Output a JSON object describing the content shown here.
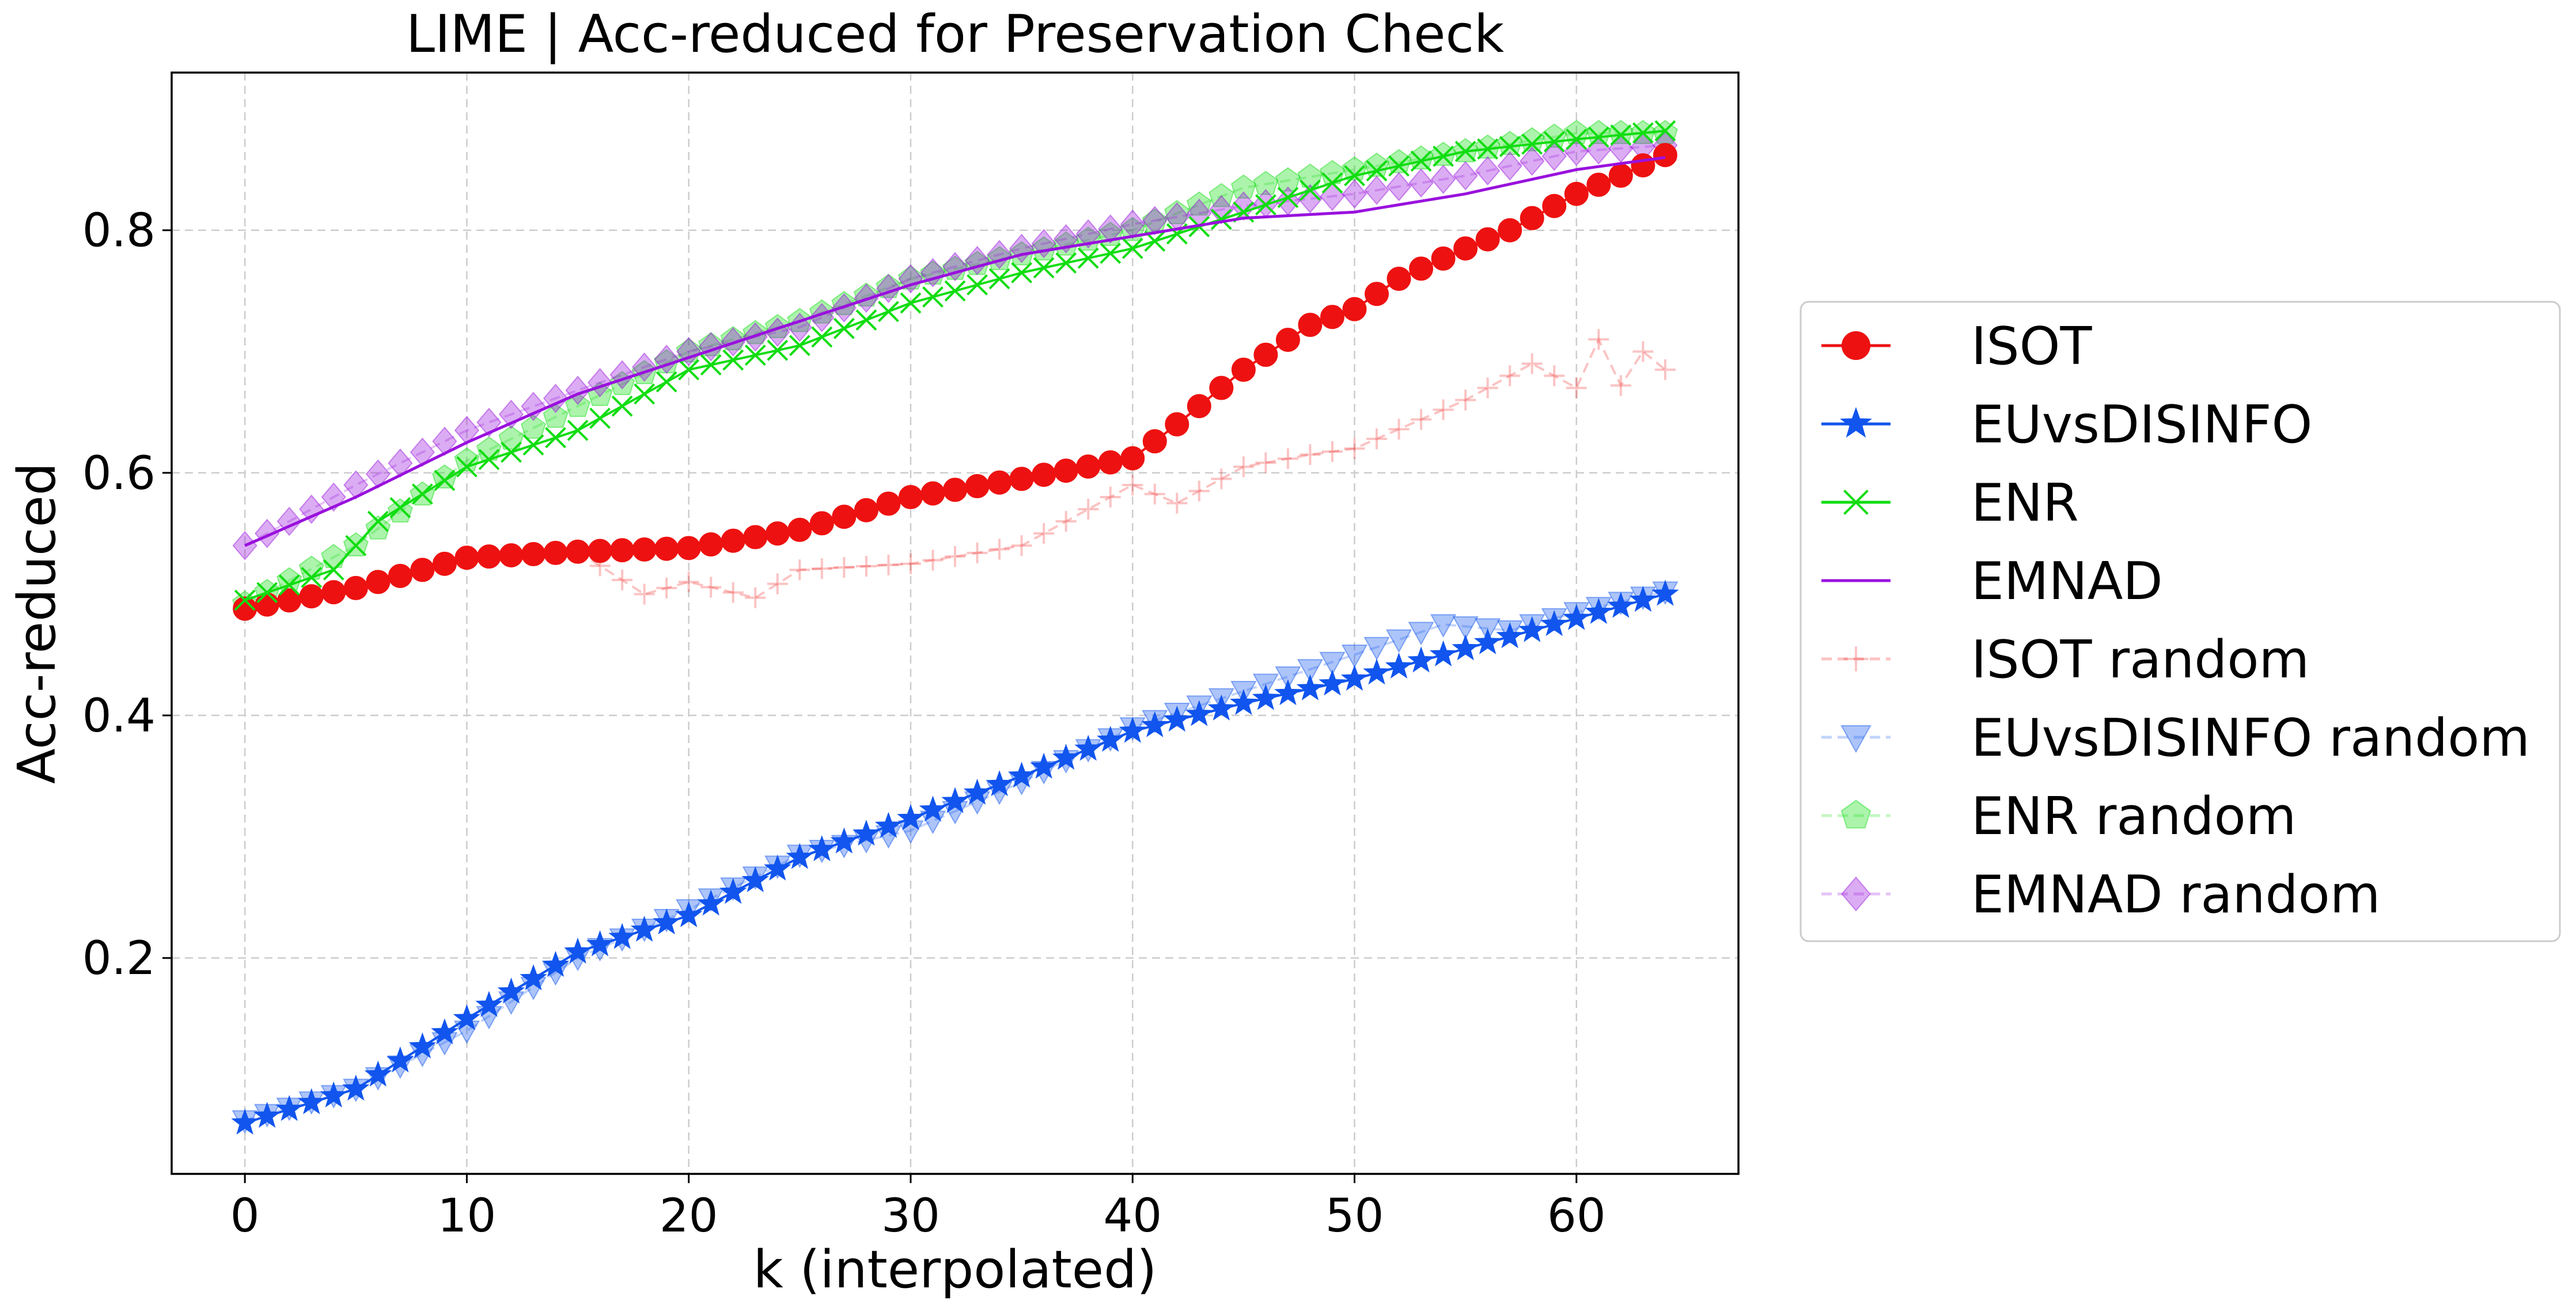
{
  "chart_data": {
    "type": "line",
    "title": "LIME | Acc-reduced for Preservation Check",
    "xlabel": "k (interpolated)",
    "ylabel": "Acc-reduced",
    "xlim": [
      -3.3,
      67.3
    ],
    "ylim": [
      0.022,
      0.93
    ],
    "xticks": [
      0,
      10,
      20,
      30,
      40,
      50,
      60
    ],
    "xtick_labels": [
      "0",
      "10",
      "20",
      "30",
      "40",
      "50",
      "60"
    ],
    "yticks": [
      0.2,
      0.4,
      0.6,
      0.8
    ],
    "ytick_labels": [
      "0.2",
      "0.4",
      "0.6",
      "0.8"
    ],
    "grid": true,
    "legend_position": "right, outside plot",
    "series": [
      {
        "name": "ISOT",
        "color": "#ee1111",
        "marker": "circle",
        "line": "solid",
        "alpha": 1,
        "anchors": [
          [
            0,
            0.488
          ],
          [
            5,
            0.505
          ],
          [
            10,
            0.53
          ],
          [
            15,
            0.535
          ],
          [
            20,
            0.538
          ],
          [
            25,
            0.553
          ],
          [
            30,
            0.58
          ],
          [
            35,
            0.595
          ],
          [
            40,
            0.612
          ],
          [
            42,
            0.64
          ],
          [
            45,
            0.685
          ],
          [
            48,
            0.722
          ],
          [
            50,
            0.735
          ],
          [
            52,
            0.76
          ],
          [
            55,
            0.785
          ],
          [
            57,
            0.8
          ],
          [
            60,
            0.83
          ],
          [
            62,
            0.845
          ],
          [
            64,
            0.862
          ]
        ]
      },
      {
        "name": "EUvsDISINFO",
        "color": "#1155ee",
        "marker": "star",
        "line": "solid",
        "alpha": 1,
        "anchors": [
          [
            0,
            0.064
          ],
          [
            5,
            0.092
          ],
          [
            10,
            0.15
          ],
          [
            15,
            0.205
          ],
          [
            20,
            0.235
          ],
          [
            25,
            0.283
          ],
          [
            30,
            0.315
          ],
          [
            35,
            0.35
          ],
          [
            40,
            0.387
          ],
          [
            45,
            0.41
          ],
          [
            50,
            0.43
          ],
          [
            55,
            0.455
          ],
          [
            60,
            0.48
          ],
          [
            64,
            0.5
          ]
        ]
      },
      {
        "name": "ENR",
        "color": "#11dd11",
        "marker": "x",
        "line": "solid",
        "alpha": 1,
        "anchors": [
          [
            0,
            0.495
          ],
          [
            4,
            0.52
          ],
          [
            6,
            0.56
          ],
          [
            10,
            0.605
          ],
          [
            15,
            0.635
          ],
          [
            20,
            0.685
          ],
          [
            25,
            0.705
          ],
          [
            30,
            0.74
          ],
          [
            35,
            0.765
          ],
          [
            40,
            0.785
          ],
          [
            45,
            0.815
          ],
          [
            50,
            0.845
          ],
          [
            55,
            0.865
          ],
          [
            60,
            0.875
          ],
          [
            64,
            0.882
          ]
        ]
      },
      {
        "name": "EMNAD",
        "color": "#9911dd",
        "marker": "none",
        "line": "solid",
        "alpha": 1,
        "anchors": [
          [
            0,
            0.54
          ],
          [
            5,
            0.58
          ],
          [
            10,
            0.625
          ],
          [
            15,
            0.665
          ],
          [
            20,
            0.695
          ],
          [
            25,
            0.725
          ],
          [
            30,
            0.755
          ],
          [
            35,
            0.78
          ],
          [
            40,
            0.795
          ],
          [
            45,
            0.81
          ],
          [
            50,
            0.815
          ],
          [
            55,
            0.83
          ],
          [
            60,
            0.85
          ],
          [
            64,
            0.86
          ]
        ]
      },
      {
        "name": "ISOT random",
        "color": "#ee1111",
        "marker": "plus",
        "line": "dashed",
        "alpha": 0.25,
        "anchors": [
          [
            0,
            0.49
          ],
          [
            5,
            0.505
          ],
          [
            10,
            0.53
          ],
          [
            15,
            0.535
          ],
          [
            18,
            0.5
          ],
          [
            20,
            0.51
          ],
          [
            23,
            0.497
          ],
          [
            25,
            0.52
          ],
          [
            30,
            0.525
          ],
          [
            35,
            0.54
          ],
          [
            40,
            0.59
          ],
          [
            42,
            0.575
          ],
          [
            45,
            0.605
          ],
          [
            48,
            0.615
          ],
          [
            50,
            0.62
          ],
          [
            55,
            0.66
          ],
          [
            58,
            0.69
          ],
          [
            60,
            0.67
          ],
          [
            61,
            0.71
          ],
          [
            62,
            0.672
          ],
          [
            63,
            0.7
          ],
          [
            64,
            0.685
          ]
        ]
      },
      {
        "name": "EUvsDISINFO random",
        "color": "#1155ee",
        "marker": "triangle-down",
        "line": "dashed",
        "alpha": 0.25,
        "anchors": [
          [
            0,
            0.066
          ],
          [
            5,
            0.092
          ],
          [
            10,
            0.14
          ],
          [
            15,
            0.2
          ],
          [
            20,
            0.24
          ],
          [
            25,
            0.285
          ],
          [
            30,
            0.305
          ],
          [
            35,
            0.345
          ],
          [
            40,
            0.39
          ],
          [
            45,
            0.42
          ],
          [
            50,
            0.45
          ],
          [
            54,
            0.475
          ],
          [
            57,
            0.47
          ],
          [
            60,
            0.485
          ],
          [
            64,
            0.502
          ]
        ]
      },
      {
        "name": "ENR random",
        "color": "#11dd11",
        "marker": "pentagon",
        "line": "dashed",
        "alpha": 0.25,
        "anchors": [
          [
            0,
            0.492
          ],
          [
            5,
            0.54
          ],
          [
            10,
            0.61
          ],
          [
            15,
            0.655
          ],
          [
            20,
            0.7
          ],
          [
            25,
            0.725
          ],
          [
            30,
            0.76
          ],
          [
            35,
            0.78
          ],
          [
            40,
            0.8
          ],
          [
            45,
            0.835
          ],
          [
            50,
            0.85
          ],
          [
            55,
            0.865
          ],
          [
            60,
            0.88
          ],
          [
            64,
            0.88
          ]
        ]
      },
      {
        "name": "EMNAD random",
        "color": "#9911dd",
        "marker": "diamond",
        "line": "dashed",
        "alpha": 0.25,
        "anchors": [
          [
            0,
            0.54
          ],
          [
            5,
            0.59
          ],
          [
            10,
            0.635
          ],
          [
            15,
            0.668
          ],
          [
            20,
            0.7
          ],
          [
            25,
            0.72
          ],
          [
            30,
            0.76
          ],
          [
            35,
            0.785
          ],
          [
            40,
            0.805
          ],
          [
            45,
            0.82
          ],
          [
            50,
            0.83
          ],
          [
            55,
            0.845
          ],
          [
            60,
            0.865
          ],
          [
            64,
            0.87
          ]
        ]
      }
    ]
  }
}
